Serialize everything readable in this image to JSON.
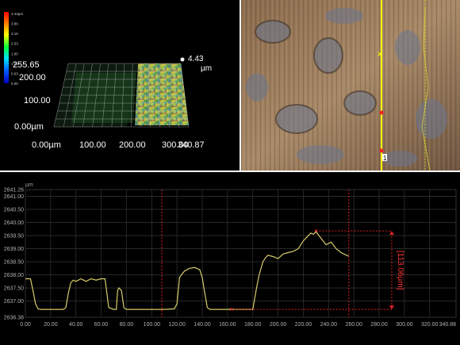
{
  "view3d": {
    "legend_ticks": [
      "4.43µm",
      "3.80",
      "3.16",
      "2.53",
      "1.90",
      "1.26",
      "0.63",
      "0.00"
    ],
    "legend_colors": [
      "#ff0000",
      "#ff8c00",
      "#ffff00",
      "#00ff40",
      "#00e0ff",
      "#0060ff",
      "#2000ff",
      "#0000c0"
    ],
    "y_labels": [
      "255.65",
      "200.00",
      "100.00",
      "0.00µm"
    ],
    "x_labels": [
      "0.00µm",
      "100.00",
      "200.00",
      "300.00",
      "340.87"
    ],
    "z_value": "4.43",
    "z_unit": "µm"
  },
  "image_view": {
    "marker_label": "1"
  },
  "profile": {
    "unit": "µm",
    "y_ticks": [
      "2641.26",
      "2641.00",
      "2640.50",
      "2640.00",
      "2639.50",
      "2639.00",
      "2638.50",
      "2638.00",
      "2637.50",
      "2637.00",
      "2636.38"
    ],
    "x_ticks": [
      "0.00",
      "20.00",
      "40.00",
      "60.00",
      "80.00",
      "100.00",
      "120.00",
      "140.00",
      "160.00",
      "180.00",
      "200.00",
      "220.00",
      "240.00",
      "260.00",
      "280.00",
      "300.00",
      "320.00",
      "340.88"
    ],
    "measurement_label": "[113.06µm]"
  },
  "chart_data": {
    "type": "line",
    "title": "",
    "xlabel": "",
    "ylabel": "µm",
    "xlim": [
      0,
      340.88
    ],
    "ylim": [
      2636.38,
      2641.26
    ],
    "grid": true,
    "x": [
      0,
      4,
      6,
      8,
      10,
      12,
      14,
      16,
      30,
      32,
      34,
      36,
      38,
      40,
      44,
      48,
      52,
      56,
      60,
      63,
      64,
      66,
      70,
      72,
      73,
      74,
      76,
      78,
      80,
      100,
      110,
      118,
      120,
      122,
      126,
      130,
      134,
      138,
      140,
      142,
      144,
      146,
      160,
      180,
      183,
      185,
      188,
      190,
      192,
      196,
      200,
      204,
      208,
      212,
      216,
      220,
      223,
      226,
      228,
      230,
      234,
      238,
      242,
      246,
      250,
      254,
      256
    ],
    "y": [
      2637.85,
      2637.85,
      2637.4,
      2636.9,
      2636.7,
      2636.68,
      2636.68,
      2636.68,
      2636.68,
      2636.75,
      2637.3,
      2637.7,
      2637.8,
      2637.75,
      2637.85,
      2637.75,
      2637.85,
      2637.8,
      2637.85,
      2637.85,
      2637.5,
      2636.75,
      2636.68,
      2636.68,
      2637.4,
      2637.5,
      2637.4,
      2636.75,
      2636.68,
      2636.68,
      2636.68,
      2636.7,
      2636.9,
      2637.9,
      2638.15,
      2638.25,
      2638.28,
      2638.2,
      2637.9,
      2637.3,
      2636.75,
      2636.68,
      2636.68,
      2636.68,
      2637.5,
      2638.0,
      2638.5,
      2638.65,
      2638.75,
      2638.7,
      2638.62,
      2638.8,
      2638.85,
      2638.9,
      2639.0,
      2639.3,
      2639.45,
      2639.6,
      2639.55,
      2639.65,
      2639.4,
      2639.15,
      2639.25,
      2639.0,
      2638.85,
      2638.75,
      2638.72
    ],
    "cursor_lines_x": [
      108,
      256
    ],
    "markers": [
      {
        "x": 163,
        "y": 2636.68
      },
      {
        "x": 230,
        "y": 2639.68
      }
    ],
    "measurement": "[113.06µm]"
  }
}
